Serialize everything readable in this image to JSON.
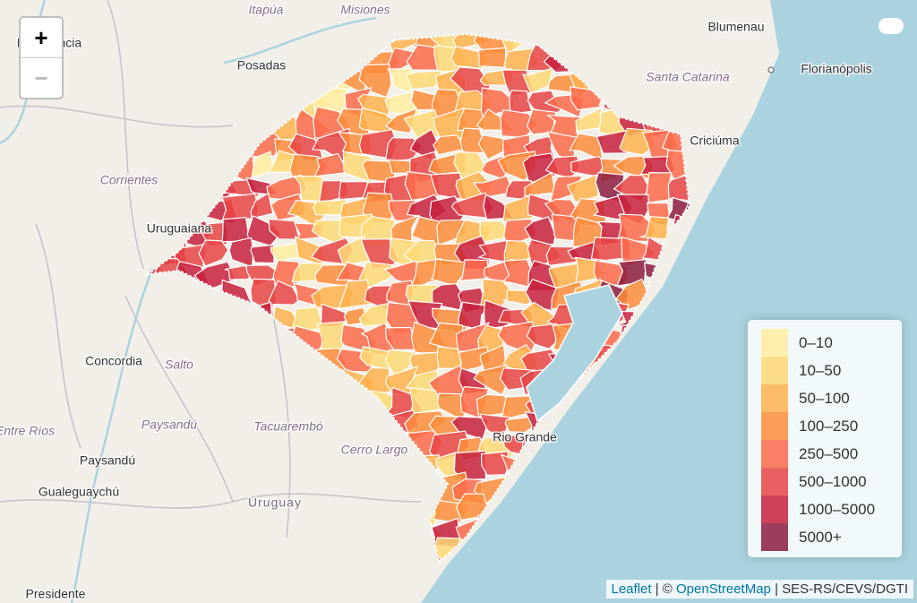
{
  "zoom": {
    "in": "+",
    "out": "−"
  },
  "place_labels": [
    {
      "text": "Itapúa",
      "kind": "region"
    },
    {
      "text": "Misiones",
      "kind": "region"
    },
    {
      "text": "Blumenau",
      "kind": "city"
    },
    {
      "text": "Resistencia",
      "kind": "city"
    },
    {
      "text": "Posadas",
      "kind": "city-big"
    },
    {
      "text": "Santa Catarina",
      "kind": "region"
    },
    {
      "text": "Florianópolis",
      "kind": "city-big"
    },
    {
      "text": "Criciúma",
      "kind": "city"
    },
    {
      "text": "Corrientes",
      "kind": "region"
    },
    {
      "text": "Uruguaiana",
      "kind": "city"
    },
    {
      "text": "Concordia",
      "kind": "city"
    },
    {
      "text": "Salto",
      "kind": "region"
    },
    {
      "text": "Entre Ríos",
      "kind": "region"
    },
    {
      "text": "Paysandú",
      "kind": "region"
    },
    {
      "text": "Tacuarembó",
      "kind": "region"
    },
    {
      "text": "Paysandú",
      "kind": "city"
    },
    {
      "text": "Cerro Largo",
      "kind": "region"
    },
    {
      "text": "Rio Grande",
      "kind": "city"
    },
    {
      "text": "Gualeguaychú",
      "kind": "city"
    },
    {
      "text": "Uruguay",
      "kind": "country"
    },
    {
      "text": "Presidente",
      "kind": "city"
    }
  ],
  "legend": {
    "items": [
      {
        "label": "0–10",
        "color": "#ffeda0"
      },
      {
        "label": "10–50",
        "color": "#fed976"
      },
      {
        "label": "50–100",
        "color": "#feb24c"
      },
      {
        "label": "100–250",
        "color": "#fd8d3c"
      },
      {
        "label": "250–500",
        "color": "#fc6b4a"
      },
      {
        "label": "500–1000",
        "color": "#e84545"
      },
      {
        "label": "1000–5000",
        "color": "#c8213d"
      },
      {
        "label": "5000+",
        "color": "#8c1c3f"
      }
    ]
  },
  "attribution": {
    "leaflet": "Leaflet",
    "sep1": " | © ",
    "osm": "OpenStreetMap",
    "sep2": " | SES-RS/CEVS/DGTI"
  }
}
